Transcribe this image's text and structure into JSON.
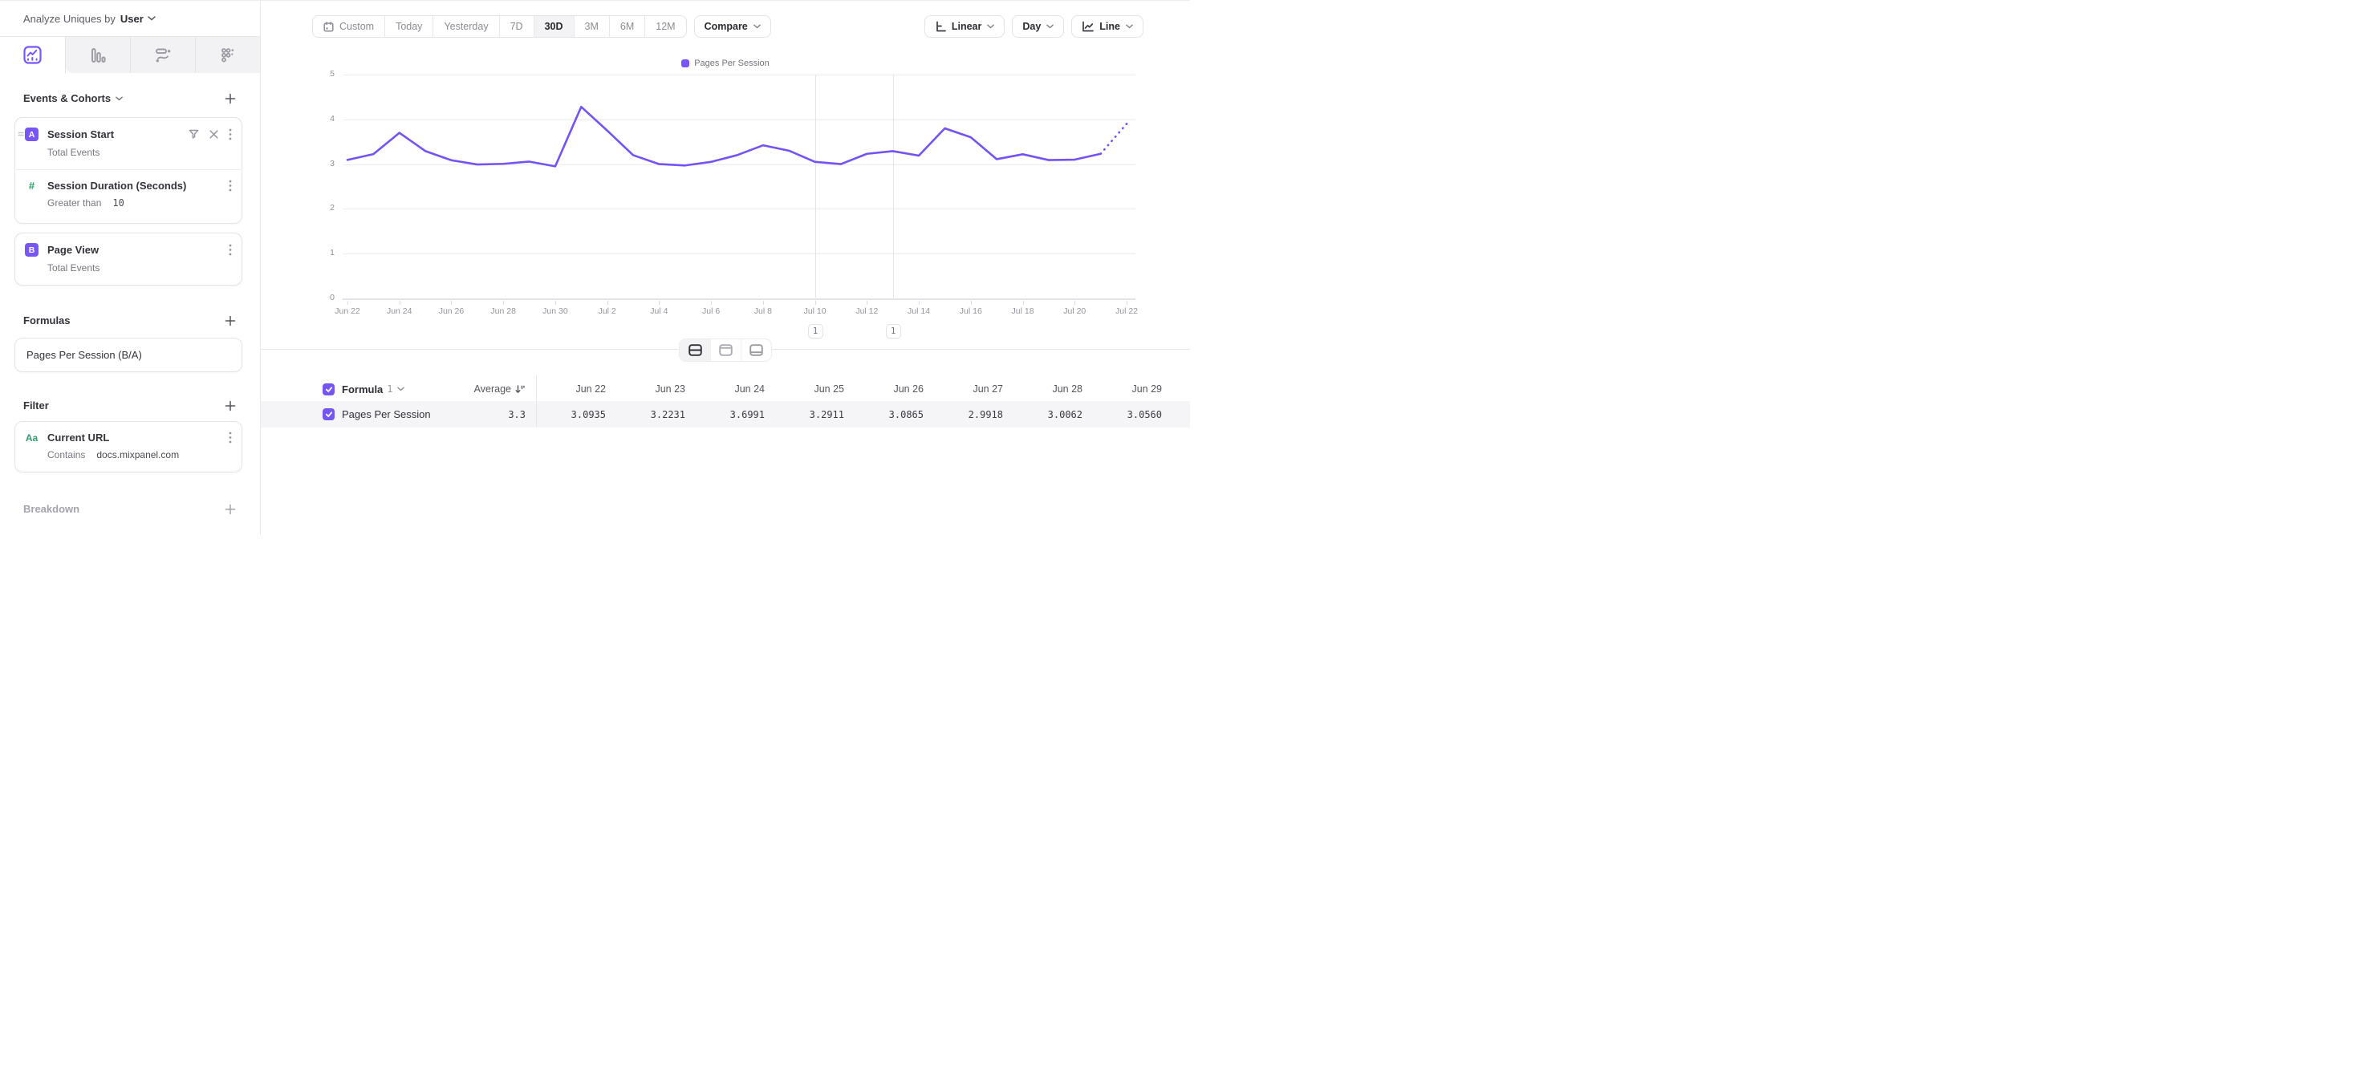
{
  "colors": {
    "accent": "#7856FF",
    "line": "#7453F6",
    "green": "#2D9E6B"
  },
  "topbar": {
    "label": "Analyze Uniques by",
    "value": "User"
  },
  "sidebar": {
    "events_header": "Events & Cohorts",
    "events": [
      {
        "badge": "A",
        "name": "Session Start",
        "detail": "Total Events"
      },
      {
        "badge": "#",
        "name": "Session Duration (Seconds)",
        "operator": "Greater than",
        "value": "10"
      },
      {
        "badge": "B",
        "name": "Page View",
        "detail": "Total Events"
      }
    ],
    "formulas_header": "Formulas",
    "formula": {
      "name": "Pages Per Session (B/A)"
    },
    "filter_header": "Filter",
    "filters": [
      {
        "badge": "Aa",
        "name": "Current URL",
        "operator": "Contains",
        "value": "docs.mixpanel.com"
      }
    ],
    "breakdown_header": "Breakdown"
  },
  "toolbar": {
    "date_ranges": [
      "Custom",
      "Today",
      "Yesterday",
      "7D",
      "30D",
      "3M",
      "6M",
      "12M"
    ],
    "selected_range": "30D",
    "compare_label": "Compare",
    "scale_label": "Linear",
    "interval_label": "Day",
    "chart_type_label": "Line"
  },
  "chart_data": {
    "type": "line",
    "legend": [
      "Pages Per Session"
    ],
    "legend_position": "top-center",
    "grid": "horizontal",
    "ylim": [
      0,
      5
    ],
    "yticks": [
      0,
      1,
      2,
      3,
      4,
      5
    ],
    "xtick_every": 2,
    "x": [
      "Jun 22",
      "Jun 23",
      "Jun 24",
      "Jun 25",
      "Jun 26",
      "Jun 27",
      "Jun 28",
      "Jun 29",
      "Jun 30",
      "Jul 1",
      "Jul 2",
      "Jul 3",
      "Jul 4",
      "Jul 5",
      "Jul 6",
      "Jul 7",
      "Jul 8",
      "Jul 9",
      "Jul 10",
      "Jul 11",
      "Jul 12",
      "Jul 13",
      "Jul 14",
      "Jul 15",
      "Jul 16",
      "Jul 17",
      "Jul 18",
      "Jul 19",
      "Jul 20",
      "Jul 21",
      "Jul 22"
    ],
    "series": [
      {
        "name": "Pages Per Session",
        "color": "#7453F6",
        "incomplete_tail_dotted": true,
        "values": [
          3.0935,
          3.2231,
          3.6991,
          3.2911,
          3.0865,
          2.9918,
          3.0062,
          3.056,
          2.95,
          4.28,
          3.75,
          3.2,
          3.0,
          2.97,
          3.05,
          3.2,
          3.42,
          3.3,
          3.05,
          3.0,
          3.23,
          3.29,
          3.19,
          3.8,
          3.6,
          3.11,
          3.22,
          3.09,
          3.1,
          3.23,
          3.9
        ]
      }
    ],
    "annotations": [
      {
        "x": "Jul 10",
        "label": "1"
      },
      {
        "x": "Jul 13",
        "label": "1"
      }
    ]
  },
  "table": {
    "group_label": "Formula",
    "group_index": "1",
    "average_label": "Average",
    "columns": [
      "Jun 22",
      "Jun 23",
      "Jun 24",
      "Jun 25",
      "Jun 26",
      "Jun 27",
      "Jun 28",
      "Jun 29"
    ],
    "rows": [
      {
        "name": "Pages Per Session",
        "average": "3.3",
        "values": [
          "3.0935",
          "3.2231",
          "3.6991",
          "3.2911",
          "3.0865",
          "2.9918",
          "3.0062",
          "3.0560"
        ]
      }
    ]
  }
}
